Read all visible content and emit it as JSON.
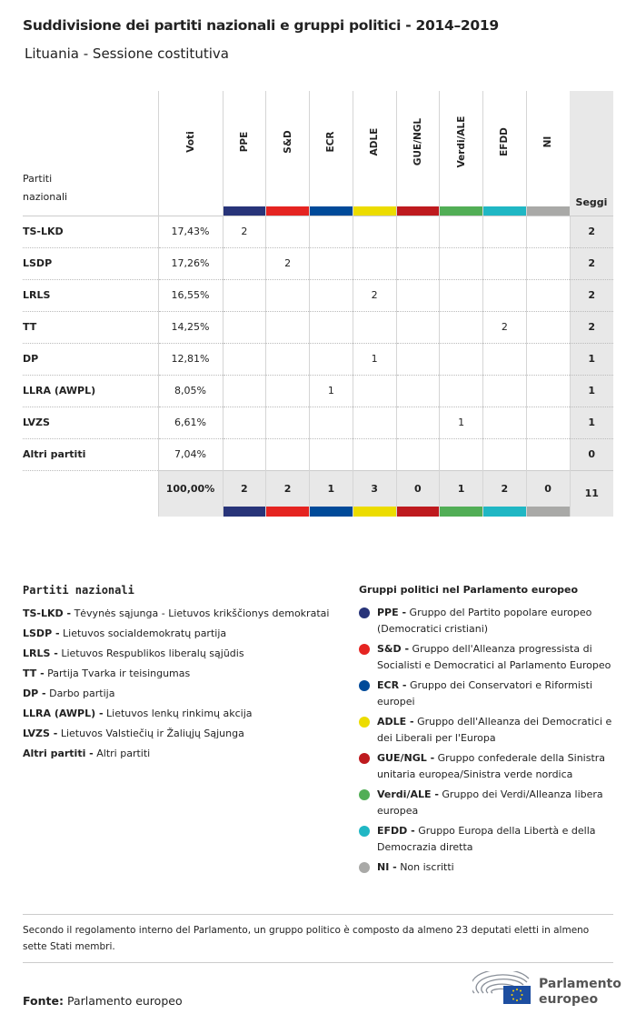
{
  "title": "Suddivisione dei partiti nazionali e gruppi politici - 2014–2019",
  "subtitle": "Lituania - Sessione costitutiva",
  "table": {
    "party_header": [
      "Partiti",
      "nazionali"
    ],
    "votes_header": "Voti",
    "seats_header": "Seggi",
    "groups": [
      {
        "label": "PPE",
        "color": "#283479"
      },
      {
        "label": "S&D",
        "color": "#e52421"
      },
      {
        "label": "ECR",
        "color": "#004a99"
      },
      {
        "label": "ADLE",
        "color": "#ecdc00"
      },
      {
        "label": "GUE/NGL",
        "color": "#be1a1e"
      },
      {
        "label": "Verdi/ALE",
        "color": "#52ae56"
      },
      {
        "label": "EFDD",
        "color": "#20b7c4"
      },
      {
        "label": "NI",
        "color": "#a9a9a7"
      }
    ],
    "rows": [
      {
        "party": "TS-LKD",
        "votes": "17,43%",
        "cells": [
          "2",
          "",
          "",
          "",
          "",
          "",
          "",
          ""
        ],
        "seats": "2"
      },
      {
        "party": "LSDP",
        "votes": "17,26%",
        "cells": [
          "",
          "2",
          "",
          "",
          "",
          "",
          "",
          ""
        ],
        "seats": "2"
      },
      {
        "party": "LRLS",
        "votes": "16,55%",
        "cells": [
          "",
          "",
          "",
          "2",
          "",
          "",
          "",
          ""
        ],
        "seats": "2"
      },
      {
        "party": "TT",
        "votes": "14,25%",
        "cells": [
          "",
          "",
          "",
          "",
          "",
          "",
          "2",
          ""
        ],
        "seats": "2"
      },
      {
        "party": "DP",
        "votes": "12,81%",
        "cells": [
          "",
          "",
          "",
          "1",
          "",
          "",
          "",
          ""
        ],
        "seats": "1"
      },
      {
        "party": "LLRA (AWPL)",
        "votes": "8,05%",
        "cells": [
          "",
          "",
          "1",
          "",
          "",
          "",
          "",
          ""
        ],
        "seats": "1"
      },
      {
        "party": "LVZS",
        "votes": "6,61%",
        "cells": [
          "",
          "",
          "",
          "",
          "",
          "1",
          "",
          ""
        ],
        "seats": "1"
      },
      {
        "party": "Altri partiti",
        "votes": "7,04%",
        "cells": [
          "",
          "",
          "",
          "",
          "",
          "",
          "",
          ""
        ],
        "seats": "0"
      }
    ],
    "totals": {
      "votes": "100,00%",
      "cells": [
        "2",
        "2",
        "1",
        "3",
        "0",
        "1",
        "2",
        "0"
      ],
      "seats": "11"
    }
  },
  "legend_parties": {
    "title": "Partiti nazionali",
    "items": [
      {
        "abbr": "TS-LKD -",
        "name": "Tėvynės sąjunga - Lietuvos krikščionys demokratai"
      },
      {
        "abbr": "LSDP -",
        "name": "Lietuvos socialdemokratų partija"
      },
      {
        "abbr": "LRLS -",
        "name": "Lietuvos Respublikos liberalų sąjūdis"
      },
      {
        "abbr": "TT -",
        "name": "Partija Tvarka ir teisingumas"
      },
      {
        "abbr": "DP -",
        "name": "Darbo partija"
      },
      {
        "abbr": "LLRA (AWPL) -",
        "name": "Lietuvos lenkų rinkimų akcija"
      },
      {
        "abbr": "LVZS -",
        "name": "Lietuvos Valstiečių ir Žaliųjų Sąjunga"
      },
      {
        "abbr": "Altri partiti -",
        "name": "Altri partiti"
      }
    ]
  },
  "legend_groups": {
    "title": "Gruppi politici nel Parlamento europeo",
    "items": [
      {
        "abbr": "PPE -",
        "name": "Gruppo del Partito popolare europeo (Democratici cristiani)",
        "color": "#283479"
      },
      {
        "abbr": "S&D -",
        "name": "Gruppo dell'Alleanza progressista di Socialisti e Democratici al Parlamento Europeo",
        "color": "#e52421"
      },
      {
        "abbr": "ECR -",
        "name": "Gruppo dei Conservatori e Riformisti europei",
        "color": "#004a99"
      },
      {
        "abbr": "ADLE -",
        "name": "Gruppo dell'Alleanza dei Democratici e dei Liberali per l'Europa",
        "color": "#ecdc00"
      },
      {
        "abbr": "GUE/NGL -",
        "name": "Gruppo confederale della Sinistra unitaria europea/Sinistra verde nordica",
        "color": "#be1a1e"
      },
      {
        "abbr": "Verdi/ALE -",
        "name": "Gruppo dei Verdi/Alleanza libera europea",
        "color": "#52ae56"
      },
      {
        "abbr": "EFDD -",
        "name": "Gruppo Europa della Libertà e della Democrazia diretta",
        "color": "#20b7c4"
      },
      {
        "abbr": "NI -",
        "name": "Non iscritti",
        "color": "#a9a9a7"
      }
    ]
  },
  "note": "Secondo il regolamento interno del Parlamento, un gruppo politico è composto da almeno 23 deputati eletti in almeno sette Stati membri.",
  "source": {
    "label": "Fonte:",
    "value": "Parlamento europeo"
  },
  "logo": {
    "line1": "Parlamento",
    "line2": "europeo"
  }
}
